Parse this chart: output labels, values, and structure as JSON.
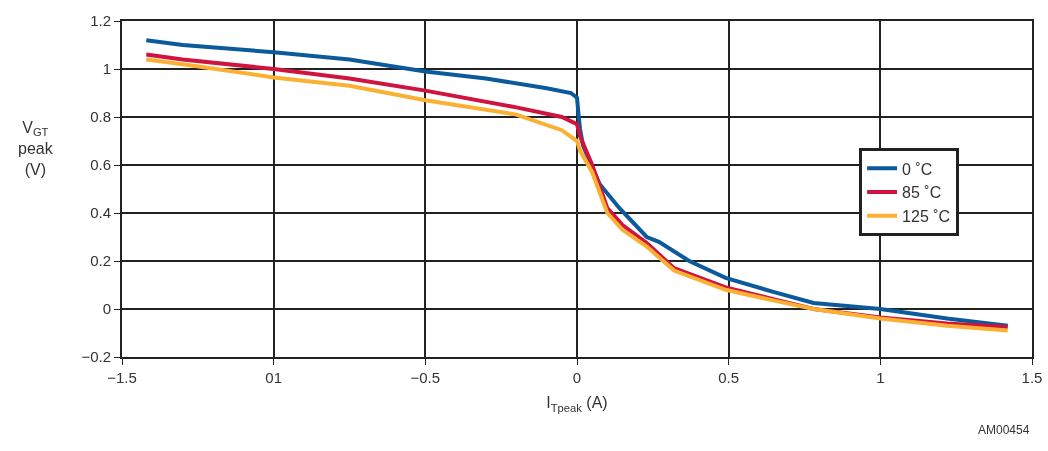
{
  "chart_data": {
    "type": "line",
    "xlabel": "I$_{Tpeak}$ (A)",
    "ylabel": "V$_{GT}$\npeak\n(V)",
    "annotations": [
      "AM00454"
    ],
    "xlim": [
      -1.5,
      1.5
    ],
    "xticks": [
      -1.5,
      {
        "value": -1,
        "label": "01"
      },
      -0.5,
      0,
      0.5,
      1,
      1.5
    ],
    "ylim": [
      -0.2,
      1.2
    ],
    "yticks": [
      -0.2,
      0,
      0.2,
      0.4,
      0.6,
      0.8,
      1,
      1.2
    ],
    "grid": true,
    "legend": "right",
    "marker": "none",
    "line_style": "solid",
    "series": [
      {
        "name": "0 ˚C",
        "color": "#0a5a9c",
        "x": [
          -1.42,
          -1.3,
          -1,
          -0.75,
          -0.5,
          -0.3,
          -0.1,
          -0.02,
          0,
          0.005,
          0.01,
          0.02,
          0.04,
          0.075,
          0.14,
          0.23,
          0.27,
          0.37,
          0.49,
          0.65,
          0.78,
          1,
          1.22,
          1.42
        ],
        "values": [
          1.12,
          1.1,
          1.07,
          1.04,
          0.99,
          0.96,
          0.92,
          0.9,
          0.88,
          0.81,
          0.75,
          0.68,
          0.62,
          0.52,
          0.42,
          0.3,
          0.28,
          0.2,
          0.13,
          0.07,
          0.025,
          0,
          -0.04,
          -0.07
        ]
      },
      {
        "name": "85 ˚C",
        "color": "#d0143f",
        "x": [
          -1.42,
          -1.3,
          -1,
          -0.75,
          -0.5,
          -0.2,
          -0.05,
          0,
          0.01,
          0.05,
          0.1,
          0.15,
          0.23,
          0.32,
          0.49,
          0.65,
          0.78,
          1,
          1.22,
          1.42
        ],
        "values": [
          1.06,
          1.04,
          1,
          0.96,
          0.91,
          0.84,
          0.8,
          0.77,
          0.72,
          0.6,
          0.42,
          0.35,
          0.275,
          0.17,
          0.09,
          0.04,
          0,
          -0.035,
          -0.06,
          -0.075
        ]
      },
      {
        "name": "125 ˚C",
        "color": "#fbb034",
        "x": [
          -1.42,
          -1.3,
          -1,
          -0.75,
          -0.5,
          -0.2,
          -0.05,
          0,
          0.01,
          0.05,
          0.1,
          0.15,
          0.23,
          0.32,
          0.49,
          0.65,
          0.78,
          1,
          1.22,
          1.42
        ],
        "values": [
          1.04,
          1.02,
          0.965,
          0.93,
          0.87,
          0.81,
          0.745,
          0.7,
          0.66,
          0.57,
          0.4,
          0.33,
          0.26,
          0.16,
          0.08,
          0.035,
          0,
          -0.04,
          -0.07,
          -0.09
        ]
      }
    ]
  }
}
